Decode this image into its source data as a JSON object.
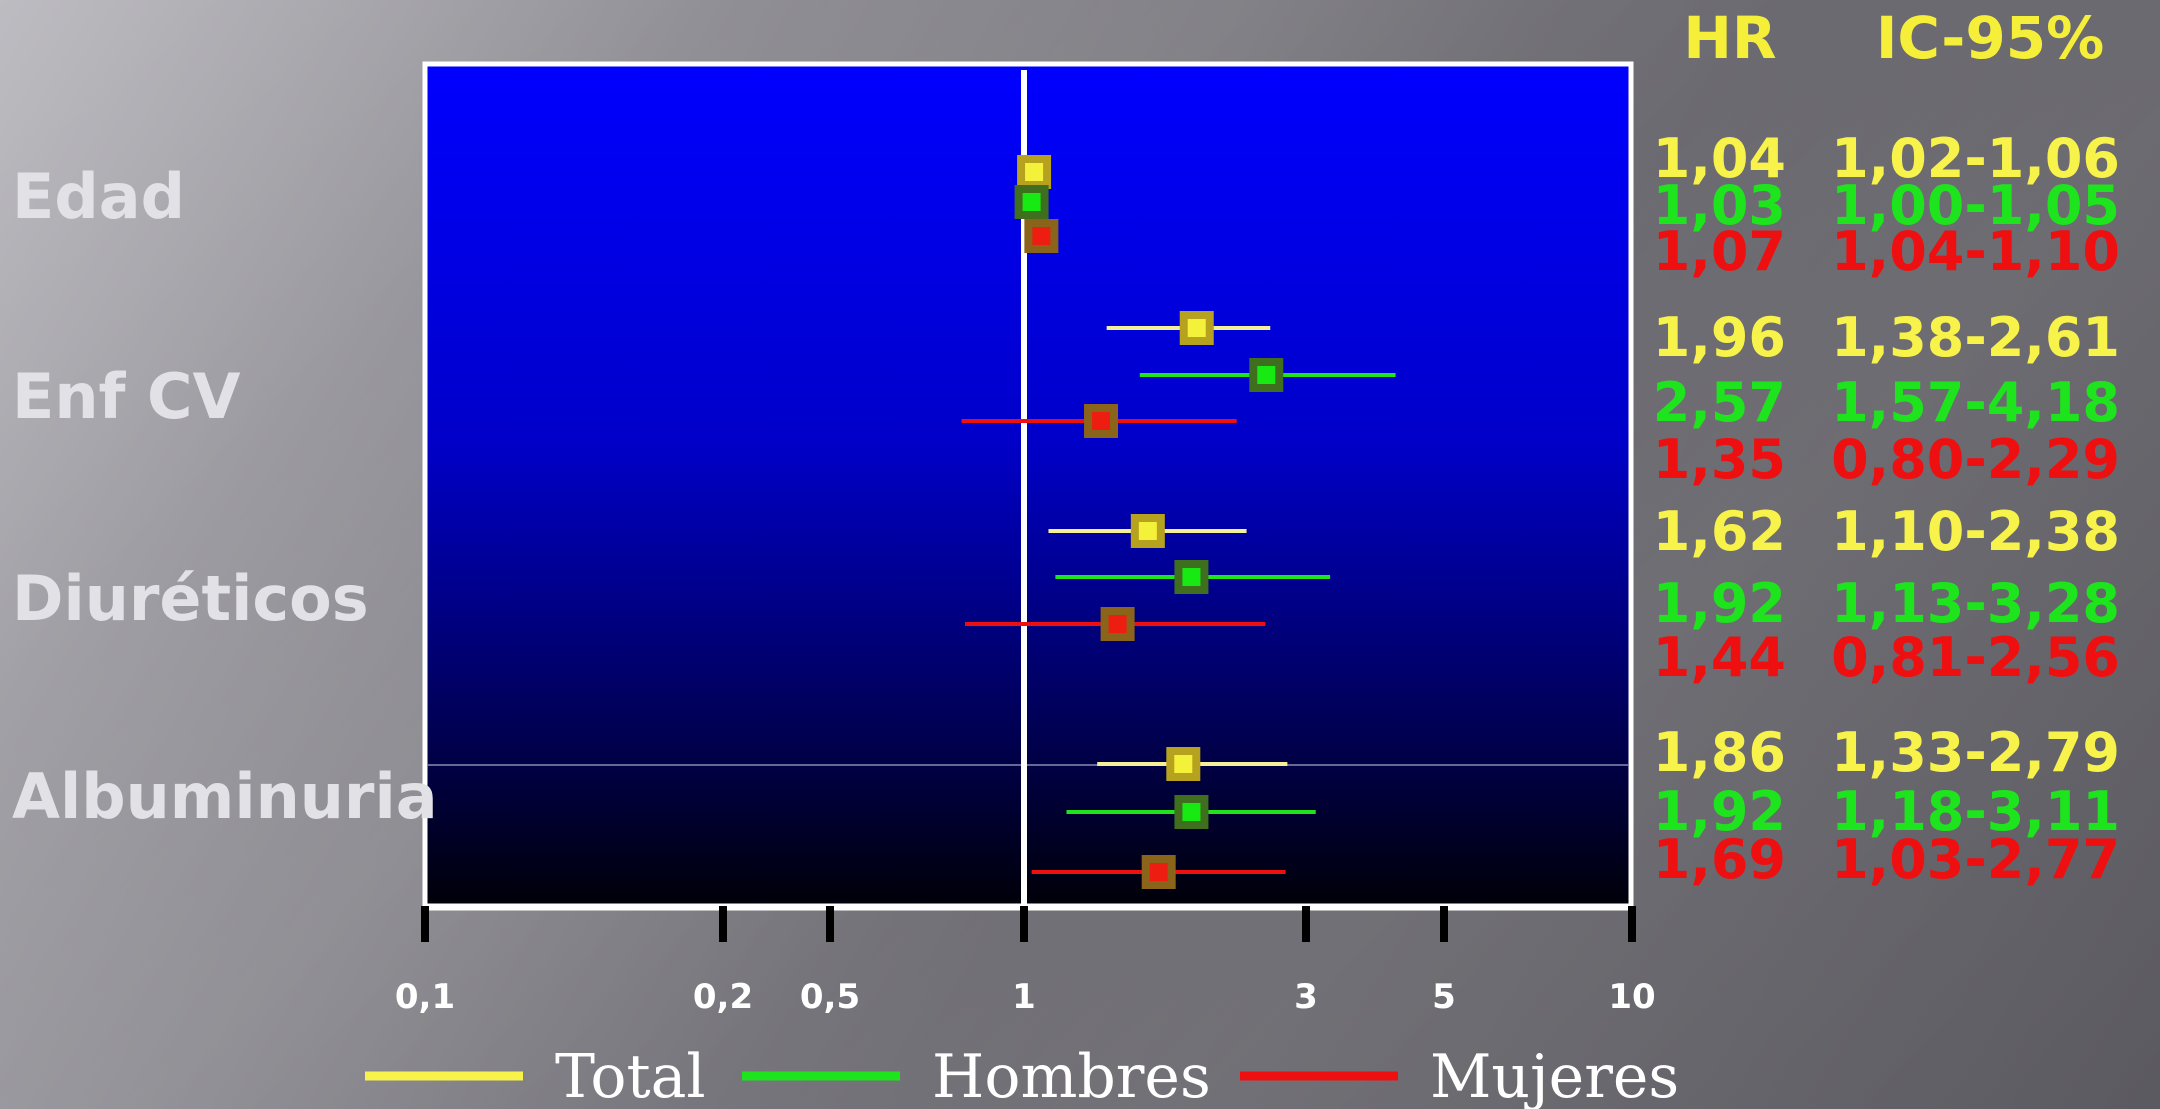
{
  "chart_data": {
    "type": "forest",
    "scale": "log",
    "xlim": [
      0.1,
      10
    ],
    "reference_line": 1,
    "x_ticks": [
      {
        "value": 0.1,
        "label": "0,1"
      },
      {
        "value": 0.2,
        "label": "0,2"
      },
      {
        "value": 0.5,
        "label": "0,5"
      },
      {
        "value": 1,
        "label": "1"
      },
      {
        "value": 3,
        "label": "3"
      },
      {
        "value": 5,
        "label": "5"
      },
      {
        "value": 10,
        "label": "10"
      }
    ],
    "columns": {
      "hr": "HR",
      "ci": "IC-95%"
    },
    "series": [
      {
        "name": "Total",
        "color": "#f8f34a"
      },
      {
        "name": "Hombres",
        "color": "#1de41d"
      },
      {
        "name": "Mujeres",
        "color": "#ee1010"
      }
    ],
    "categories": [
      {
        "label": "Edad",
        "rows": [
          {
            "series": "Total",
            "hr": 1.04,
            "lo": 1.02,
            "hi": 1.06,
            "hr_label": "1,04",
            "ci_label": "1,02-1,06"
          },
          {
            "series": "Hombres",
            "hr": 1.03,
            "lo": 1.0,
            "hi": 1.05,
            "hr_label": "1,03",
            "ci_label": "1,00-1,05"
          },
          {
            "series": "Mujeres",
            "hr": 1.07,
            "lo": 1.04,
            "hi": 1.1,
            "hr_label": "1,07",
            "ci_label": "1,04-1,10"
          }
        ]
      },
      {
        "label": "Enf CV",
        "rows": [
          {
            "series": "Total",
            "hr": 1.96,
            "lo": 1.38,
            "hi": 2.61,
            "hr_label": "1,96",
            "ci_label": "1,38-2,61"
          },
          {
            "series": "Hombres",
            "hr": 2.57,
            "lo": 1.57,
            "hi": 4.18,
            "hr_label": "2,57",
            "ci_label": "1,57-4,18"
          },
          {
            "series": "Mujeres",
            "hr": 1.35,
            "lo": 0.8,
            "hi": 2.29,
            "hr_label": "1,35",
            "ci_label": "0,80-2,29"
          }
        ]
      },
      {
        "label": "Diuréticos",
        "rows": [
          {
            "series": "Total",
            "hr": 1.62,
            "lo": 1.1,
            "hi": 2.38,
            "hr_label": "1,62",
            "ci_label": "1,10-2,38"
          },
          {
            "series": "Hombres",
            "hr": 1.92,
            "lo": 1.13,
            "hi": 3.28,
            "hr_label": "1,92",
            "ci_label": "1,13-3,28"
          },
          {
            "series": "Mujeres",
            "hr": 1.44,
            "lo": 0.81,
            "hi": 2.56,
            "hr_label": "1,44",
            "ci_label": "0,81-2,56"
          }
        ]
      },
      {
        "label": "Albuminuria",
        "rows": [
          {
            "series": "Total",
            "hr": 1.86,
            "lo": 1.33,
            "hi": 2.79,
            "hr_label": "1,86",
            "ci_label": "1,33-2,79"
          },
          {
            "series": "Hombres",
            "hr": 1.92,
            "lo": 1.18,
            "hi": 3.11,
            "hr_label": "1,92",
            "ci_label": "1,18-3,11"
          },
          {
            "series": "Mujeres",
            "hr": 1.69,
            "lo": 1.03,
            "hi": 2.77,
            "hr_label": "1,69",
            "ci_label": "1,03-2,77"
          }
        ]
      }
    ],
    "legend": [
      "Total",
      "Hombres",
      "Mujeres"
    ],
    "legend_position": "bottom"
  }
}
